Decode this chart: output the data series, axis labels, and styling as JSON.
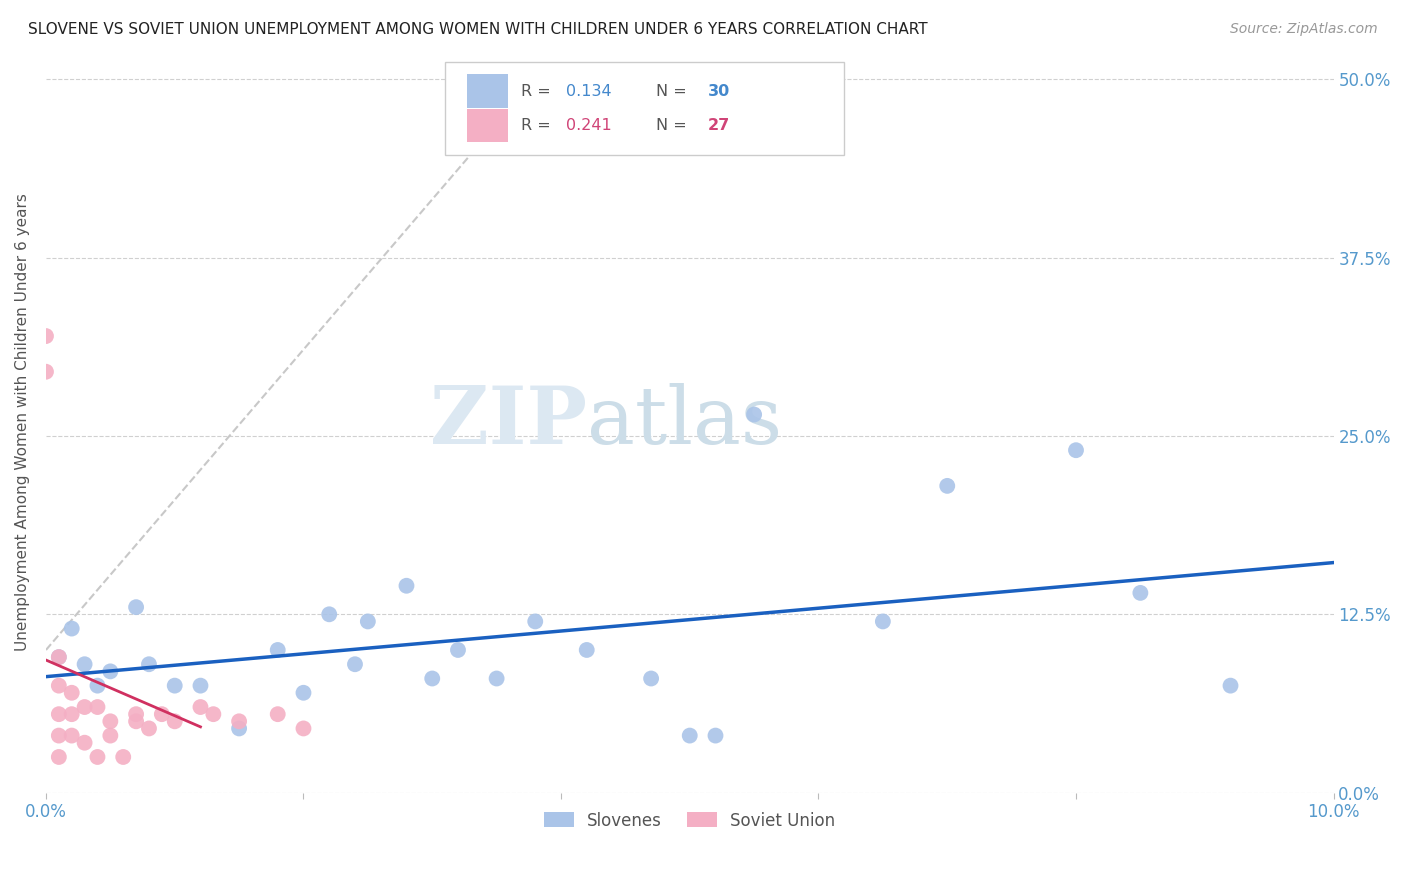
{
  "title": "SLOVENE VS SOVIET UNION UNEMPLOYMENT AMONG WOMEN WITH CHILDREN UNDER 6 YEARS CORRELATION CHART",
  "source": "Source: ZipAtlas.com",
  "ylabel": "Unemployment Among Women with Children Under 6 years",
  "xlim": [
    0.0,
    0.1
  ],
  "ylim": [
    0.0,
    0.52
  ],
  "xticks": [
    0.0,
    0.02,
    0.04,
    0.06,
    0.08,
    0.1
  ],
  "yticks": [
    0.0,
    0.125,
    0.25,
    0.375,
    0.5
  ],
  "ytick_labels": [
    "0.0%",
    "12.5%",
    "25.0%",
    "37.5%",
    "50.0%"
  ],
  "xtick_labels": [
    "0.0%",
    "",
    "",
    "",
    "",
    "10.0%"
  ],
  "slovenes_R": 0.134,
  "slovenes_N": 30,
  "soviet_R": 0.241,
  "soviet_N": 27,
  "slovenes_color": "#aac4e8",
  "soviet_color": "#f4afc4",
  "trend_slovenes_color": "#1a60c0",
  "trend_soviet_gray_color": "#c8c8c8",
  "trend_soviet_solid_color": "#d03060",
  "watermark_zip_color": "#d8e4f0",
  "watermark_atlas_color": "#c8d8e8",
  "slovenes_x": [
    0.001,
    0.002,
    0.003,
    0.004,
    0.005,
    0.007,
    0.008,
    0.01,
    0.012,
    0.015,
    0.018,
    0.02,
    0.022,
    0.024,
    0.025,
    0.028,
    0.03,
    0.032,
    0.035,
    0.038,
    0.042,
    0.047,
    0.05,
    0.052,
    0.055,
    0.065,
    0.07,
    0.08,
    0.085,
    0.092
  ],
  "slovenes_y": [
    0.095,
    0.115,
    0.09,
    0.075,
    0.085,
    0.13,
    0.09,
    0.075,
    0.075,
    0.045,
    0.1,
    0.07,
    0.125,
    0.09,
    0.12,
    0.145,
    0.08,
    0.1,
    0.08,
    0.12,
    0.1,
    0.08,
    0.04,
    0.04,
    0.265,
    0.12,
    0.215,
    0.24,
    0.14,
    0.075
  ],
  "soviet_x": [
    0.0,
    0.0,
    0.001,
    0.001,
    0.001,
    0.001,
    0.001,
    0.002,
    0.002,
    0.002,
    0.003,
    0.003,
    0.004,
    0.004,
    0.005,
    0.005,
    0.006,
    0.007,
    0.007,
    0.008,
    0.009,
    0.01,
    0.012,
    0.013,
    0.015,
    0.018,
    0.02
  ],
  "soviet_y": [
    0.32,
    0.295,
    0.095,
    0.075,
    0.055,
    0.04,
    0.025,
    0.07,
    0.055,
    0.04,
    0.06,
    0.035,
    0.06,
    0.025,
    0.05,
    0.04,
    0.025,
    0.055,
    0.05,
    0.045,
    0.055,
    0.05,
    0.06,
    0.055,
    0.05,
    0.055,
    0.045
  ],
  "background_color": "#ffffff",
  "grid_color": "#d0d0d0",
  "tick_color": "#5599cc"
}
